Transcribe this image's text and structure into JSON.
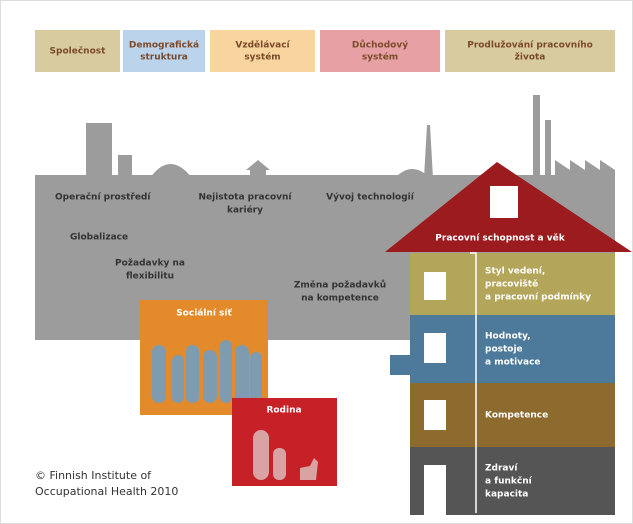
{
  "header": {
    "tabs": [
      [
        "Společnost"
      ],
      [
        "Demografická",
        "struktura"
      ],
      [
        "Vzdělávací",
        "systém"
      ],
      [
        "Důchodový",
        "systém"
      ],
      [
        "Prodlužování pracovního",
        "života"
      ]
    ]
  },
  "environment": {
    "labels": [
      [
        "Operační prostředí"
      ],
      [
        "Nejistota pracovní",
        "kariéry"
      ],
      [
        "Vývoj technologií"
      ],
      [
        "Globalizace"
      ],
      [
        "Požadavky na",
        "flexibilitu"
      ],
      [
        "Změna požadavků",
        "na kompetence"
      ]
    ]
  },
  "social": {
    "network": "Sociální síť",
    "family": "Rodina"
  },
  "house": {
    "roof": "Pracovní schopnost a věk",
    "floors": [
      [
        "Styl vedení,",
        "pracoviště",
        "a pracovní podmínky"
      ],
      [
        "Hodnoty,",
        "postoje",
        "a motivace"
      ],
      [
        "Kompetence"
      ],
      [
        "Zdraví",
        "a funkční",
        "kapacita"
      ]
    ]
  },
  "footer": {
    "copyright": [
      "© Finnish Institute of",
      "Occupational Health 2010"
    ]
  }
}
